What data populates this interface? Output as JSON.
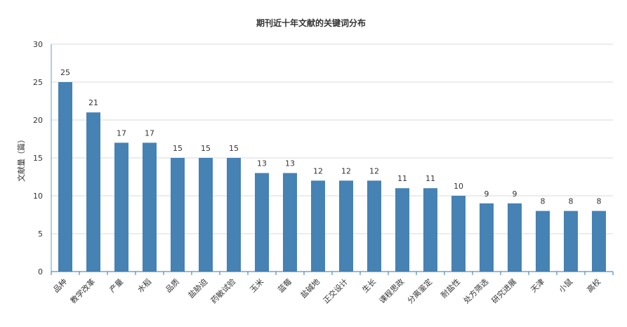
{
  "chart_data": {
    "type": "bar",
    "title": "期刊近十年文献的关键词分布",
    "xlabel": "",
    "ylabel": "文献量（篇）",
    "ylim": [
      0,
      30
    ],
    "yticks": [
      0,
      5,
      10,
      15,
      20,
      25,
      30
    ],
    "grid": true,
    "categories": [
      "品种",
      "教学改革",
      "产量",
      "水稻",
      "品质",
      "盐胁迫",
      "药敏试验",
      "玉米",
      "蓝莓",
      "盐碱地",
      "正交设计",
      "生长",
      "课程思政",
      "分离鉴定",
      "耐盐性",
      "处方筛选",
      "研究进展",
      "天津",
      "小鼠",
      "高校"
    ],
    "values": [
      25,
      21,
      17,
      17,
      15,
      15,
      15,
      13,
      13,
      12,
      12,
      12,
      11,
      11,
      10,
      9,
      9,
      8,
      8,
      8
    ],
    "bar_color": "#4682b4"
  }
}
